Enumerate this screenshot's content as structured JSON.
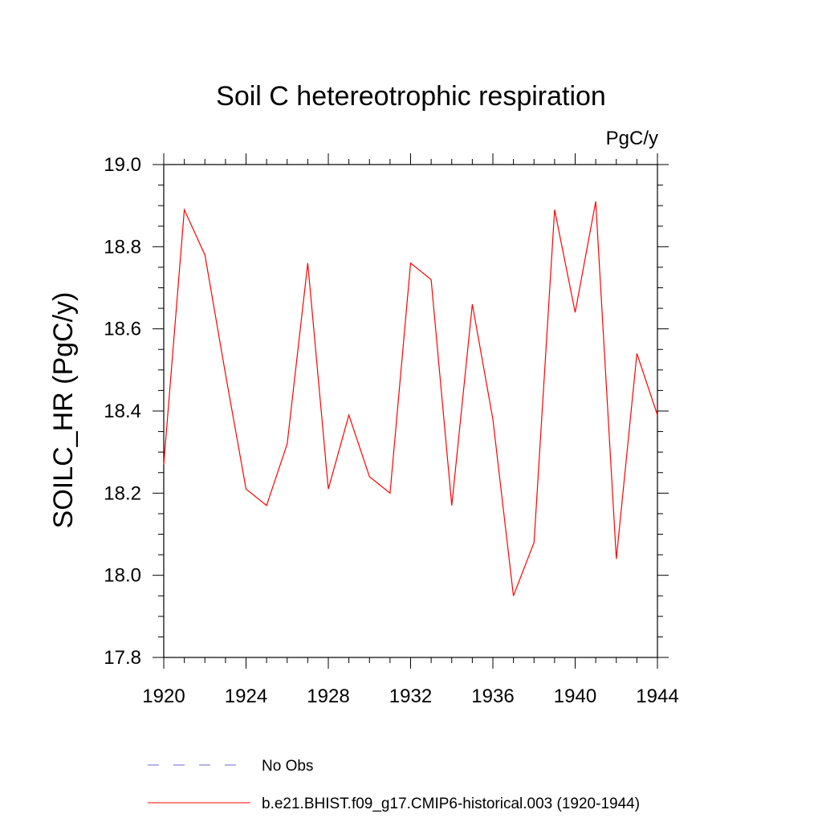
{
  "chart_data": {
    "type": "line",
    "title": "Soil C hetereotrophic respiration",
    "units_label": "PgC/y",
    "ylabel": "SOILC_HR  (PgC/y)",
    "xlabel": "",
    "xlim": [
      1920,
      1944
    ],
    "ylim": [
      17.8,
      19.0
    ],
    "x_ticks": [
      1920,
      1924,
      1928,
      1932,
      1936,
      1940,
      1944
    ],
    "x_tick_labels": [
      "1920",
      "1924",
      "1928",
      "1932",
      "1936",
      "1940",
      "1944"
    ],
    "y_ticks": [
      17.8,
      18.0,
      18.2,
      18.4,
      18.6,
      18.8,
      19.0
    ],
    "y_tick_labels": [
      "17.8",
      "18.0",
      "18.2",
      "18.4",
      "18.6",
      "18.8",
      "19.0"
    ],
    "grid": false,
    "legend_position": "bottom",
    "series": [
      {
        "name": "b.e21.BHIST.f09_g17.CMIP6-historical.003 (1920-1944)",
        "color": "#ff0000",
        "style": "solid",
        "x": [
          1920,
          1921,
          1922,
          1923,
          1924,
          1925,
          1926,
          1927,
          1928,
          1929,
          1930,
          1931,
          1932,
          1933,
          1934,
          1935,
          1936,
          1937,
          1938,
          1939,
          1940,
          1941,
          1942,
          1943,
          1944
        ],
        "values": [
          18.27,
          18.89,
          18.78,
          18.49,
          18.21,
          18.17,
          18.32,
          18.76,
          18.21,
          18.39,
          18.24,
          18.2,
          18.76,
          18.72,
          18.17,
          18.66,
          18.38,
          17.95,
          18.08,
          18.89,
          18.64,
          18.91,
          18.04,
          18.54,
          18.39
        ]
      }
    ],
    "legend": [
      {
        "label": "No Obs",
        "color": "#6a6acd",
        "style": "dashed"
      },
      {
        "label": "b.e21.BHIST.f09_g17.CMIP6-historical.003 (1920-1944)",
        "color": "#ff0000",
        "style": "solid"
      }
    ]
  }
}
